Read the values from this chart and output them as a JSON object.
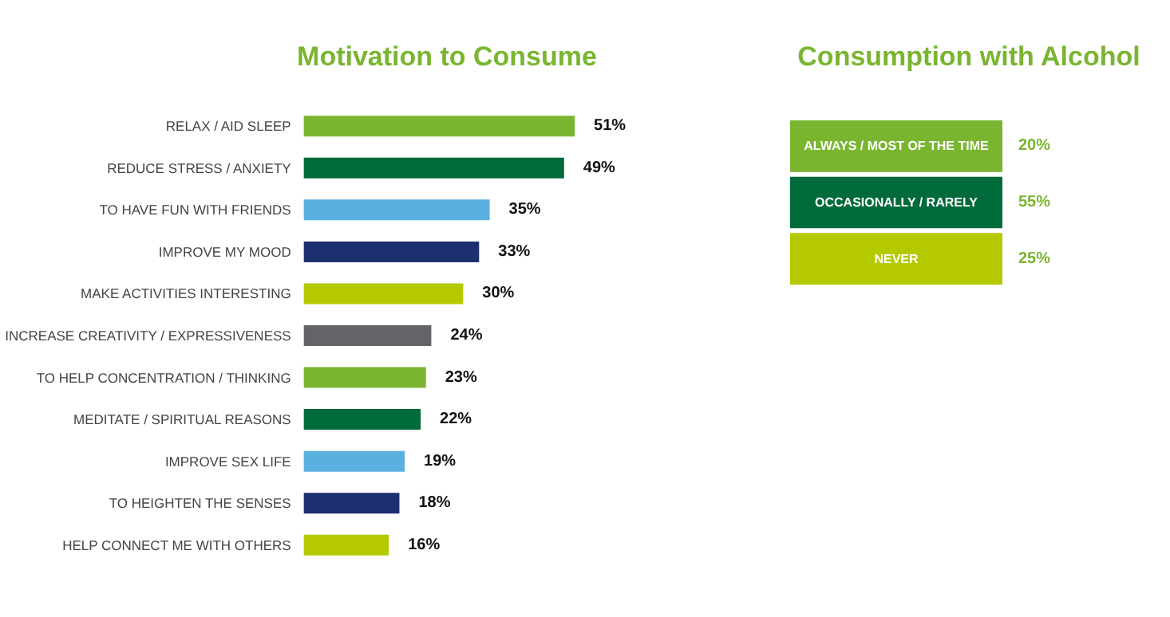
{
  "chart_data": [
    {
      "type": "bar",
      "orientation": "horizontal",
      "title": "Motivation to Consume",
      "categories": [
        "RELAX / AID SLEEP",
        "REDUCE STRESS / ANXIETY",
        "TO HAVE FUN WITH FRIENDS",
        "IMPROVE MY MOOD",
        "MAKE ACTIVITIES INTERESTING",
        "INCREASE CREATIVITY / EXPRESSIVENESS",
        "TO HELP CONCENTRATION / THINKING",
        "MEDITATE / SPIRITUAL REASONS",
        "IMPROVE SEX LIFE",
        "TO HEIGHTEN THE SENSES",
        "HELP CONNECT ME WITH OTHERS"
      ],
      "values": [
        51,
        49,
        35,
        33,
        30,
        24,
        23,
        22,
        19,
        18,
        16
      ],
      "value_labels": [
        "51%",
        "49%",
        "35%",
        "33%",
        "30%",
        "24%",
        "23%",
        "22%",
        "19%",
        "18%",
        "16%"
      ],
      "colors": [
        "#7ab530",
        "#006a3b",
        "#5ab0e0",
        "#1c2f6e",
        "#b5c900",
        "#626469",
        "#7ab530",
        "#006a3b",
        "#5ab0e0",
        "#1c2f6e",
        "#b5c900"
      ]
    },
    {
      "type": "other",
      "title": "Consumption with Alcohol",
      "categories": [
        "ALWAYS / MOST OF THE TIME",
        "OCCASIONALLY / RARELY",
        "NEVER"
      ],
      "values": [
        20,
        55,
        25
      ],
      "value_labels": [
        "20%",
        "55%",
        "25%"
      ],
      "colors": [
        "#7ab530",
        "#006a3b",
        "#b5c900"
      ]
    }
  ]
}
